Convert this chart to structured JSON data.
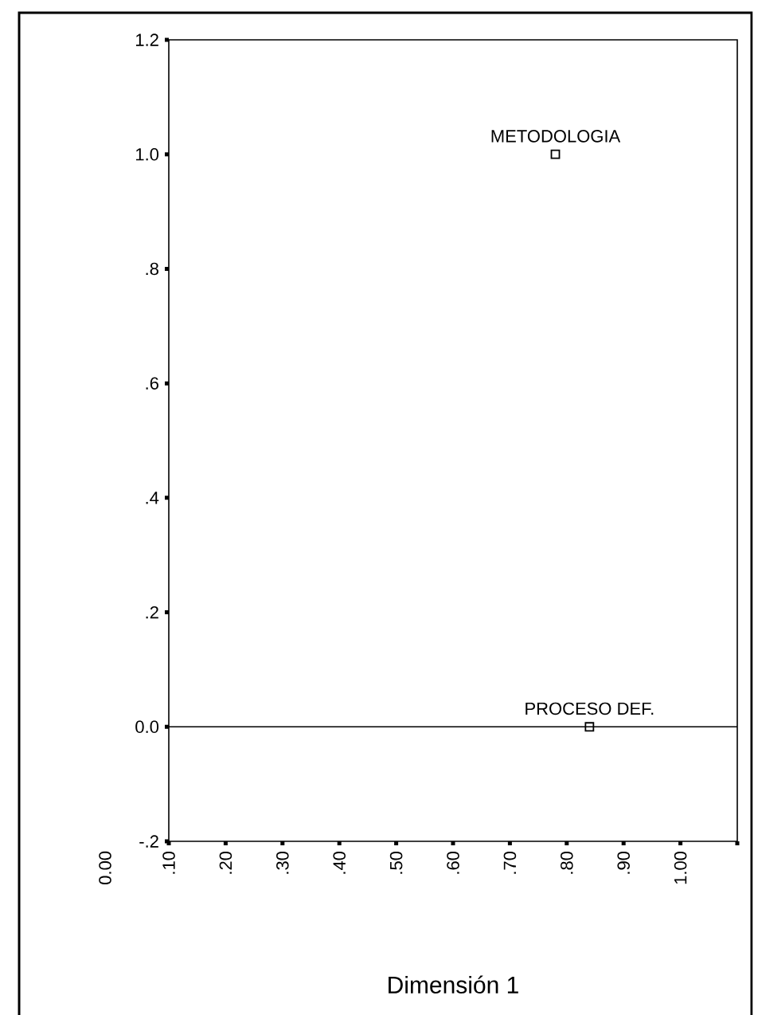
{
  "chart_data": {
    "type": "scatter",
    "xlabel": "Dimensión 1",
    "x": [
      0.78,
      0.84
    ],
    "values": [
      1.0,
      0.0
    ],
    "color": "#000000",
    "marker": "square",
    "xlim": [
      0.1,
      1.1
    ],
    "ylim": [
      -0.2,
      1.2
    ],
    "xticks": [
      {
        "value": 0.1,
        "label": ".10"
      },
      {
        "value": 0.2,
        "label": ".20"
      },
      {
        "value": 0.3,
        "label": ".30"
      },
      {
        "value": 0.4,
        "label": ".40"
      },
      {
        "value": 0.5,
        "label": ".50"
      },
      {
        "value": 0.6,
        "label": ".60"
      },
      {
        "value": 0.7,
        "label": ".70"
      },
      {
        "value": 0.8,
        "label": ".80"
      },
      {
        "value": 0.9,
        "label": ".90"
      },
      {
        "value": 1.0,
        "label": "1.00"
      },
      {
        "value": 1.1,
        "label": null
      }
    ],
    "yticks": [
      {
        "value": -0.2,
        "label": "-.2"
      },
      {
        "value": 0.0,
        "label": "0.0"
      },
      {
        "value": 0.2,
        "label": ".2"
      },
      {
        "value": 0.4,
        "label": ".4"
      },
      {
        "value": 0.6,
        "label": ".6"
      },
      {
        "value": 0.8,
        "label": ".8"
      },
      {
        "value": 1.0,
        "label": "1.0"
      },
      {
        "value": 1.2,
        "label": "1.2"
      }
    ],
    "ref_lines": [
      {
        "axis": "y",
        "value": 0,
        "color": "#000000"
      }
    ],
    "annotations": [
      {
        "text": "METODOLOGIA",
        "x": 0.78,
        "y": 1.0
      },
      {
        "text": "PROCESO DEF.",
        "x": 0.84,
        "y": 0.0
      },
      "0.00"
    ]
  }
}
